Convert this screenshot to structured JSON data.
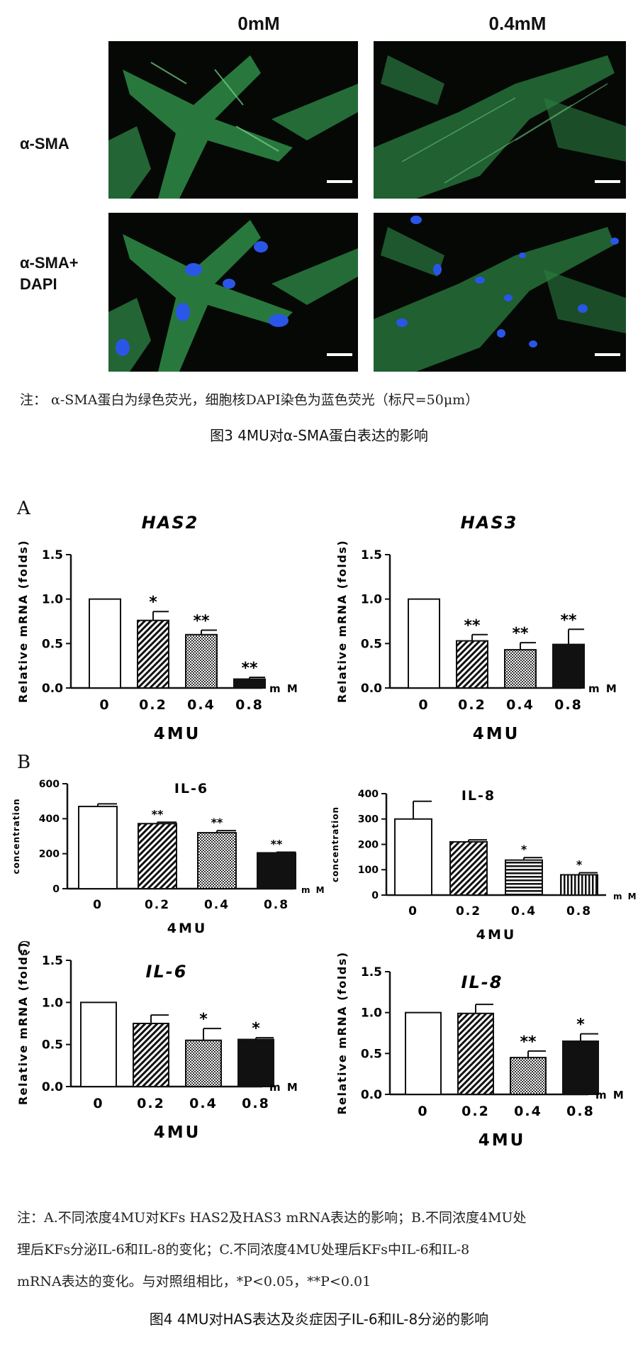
{
  "fig3": {
    "col_labels": [
      "0mM",
      "0.4mM"
    ],
    "row_labels": [
      "α-SMA",
      "α-SMA+\nDAPI"
    ],
    "note": "注：  α-SMA蛋白为绿色荧光，细胞核DAPI染色为蓝色荧光（标尺=50μm）",
    "caption": "图3   4MU对α-SMA蛋白表达的影响",
    "colors": {
      "green": "#3fae5a",
      "blue": "#2a56e8",
      "background": "#050805"
    }
  },
  "fig4": {
    "panel_letters": [
      "A",
      "B",
      "C"
    ],
    "note_lines": [
      "注：A.不同浓度4MU对KFs  HAS2及HAS3  mRNA表达的影响；B.不同浓度4MU处",
      "理后KFs分泌IL-6和IL-8的变化；C.不同浓度4MU处理后KFs中IL-6和IL-8",
      "mRNA表达的变化。与对照组相比，*P<0.05，**P<0.01"
    ],
    "caption": "图4   4MU对HAS表达及炎症因子IL-6和IL-8分泌的影响"
  },
  "chart_data": [
    {
      "type": "bar",
      "panel": "A",
      "title": "HAS2",
      "ylabel": "Relative mRNA (folds)",
      "xlabel": "4MU",
      "unit": "m M",
      "categories": [
        "0",
        "0.2",
        "0.4",
        "0.8"
      ],
      "values": [
        1.0,
        0.76,
        0.6,
        0.1
      ],
      "errors": [
        0,
        0.1,
        0.05,
        0.02
      ],
      "significance": [
        "",
        "*",
        "**",
        "**"
      ],
      "ylim": [
        0,
        1.5
      ],
      "yticks": [
        "0.0",
        "0.5",
        "1.0",
        "1.5"
      ],
      "fills": [
        "white",
        "diag",
        "dots",
        "black"
      ]
    },
    {
      "type": "bar",
      "panel": "A",
      "title": "HAS3",
      "ylabel": "Relative mRNA (folds)",
      "xlabel": "4MU",
      "unit": "m M",
      "categories": [
        "0",
        "0.2",
        "0.4",
        "0.8"
      ],
      "values": [
        1.0,
        0.53,
        0.43,
        0.49
      ],
      "errors": [
        0,
        0.07,
        0.08,
        0.17
      ],
      "significance": [
        "",
        "**",
        "**",
        "**"
      ],
      "ylim": [
        0,
        1.5
      ],
      "yticks": [
        "0.0",
        "0.5",
        "1.0",
        "1.5"
      ],
      "fills": [
        "white",
        "diag",
        "dots",
        "black"
      ]
    },
    {
      "type": "bar",
      "panel": "B",
      "title": "IL-6",
      "ylabel": "concentration",
      "xlabel": "4MU",
      "unit": "m M",
      "categories": [
        "0",
        "0.2",
        "0.4",
        "0.8"
      ],
      "values": [
        470,
        372,
        320,
        205
      ],
      "errors": [
        15,
        8,
        12,
        4
      ],
      "significance": [
        "",
        "**",
        "**",
        "**"
      ],
      "ylim": [
        0,
        600
      ],
      "yticks": [
        "0",
        "200",
        "400",
        "600"
      ],
      "fills": [
        "white",
        "diag",
        "dots",
        "black"
      ]
    },
    {
      "type": "bar",
      "panel": "B",
      "title": "IL-8",
      "ylabel": "concentration",
      "xlabel": "4MU",
      "unit": "m M",
      "categories": [
        "0",
        "0.2",
        "0.4",
        "0.8"
      ],
      "values": [
        300,
        210,
        138,
        80
      ],
      "errors": [
        70,
        8,
        10,
        8
      ],
      "significance": [
        "",
        "",
        "*",
        "*"
      ],
      "ylim": [
        0,
        400
      ],
      "yticks": [
        "0",
        "100",
        "200",
        "300",
        "400"
      ],
      "fills": [
        "white",
        "diag",
        "hlines",
        "vlines"
      ]
    },
    {
      "type": "bar",
      "panel": "C",
      "title": "IL-6",
      "ylabel": "Relative mRNA (folds)",
      "xlabel": "4MU",
      "unit": "m M",
      "categories": [
        "0",
        "0.2",
        "0.4",
        "0.8"
      ],
      "values": [
        1.0,
        0.75,
        0.55,
        0.56
      ],
      "errors": [
        0,
        0.1,
        0.14,
        0.02
      ],
      "significance": [
        "",
        "",
        "*",
        "*"
      ],
      "ylim": [
        0,
        1.5
      ],
      "yticks": [
        "0.0",
        "0.5",
        "1.0",
        "1.5"
      ],
      "fills": [
        "white",
        "diag",
        "dots",
        "black"
      ]
    },
    {
      "type": "bar",
      "panel": "C",
      "title": "IL-8",
      "ylabel": "Relative mRNA (folds)",
      "xlabel": "4MU",
      "unit": "m M",
      "categories": [
        "0",
        "0.2",
        "0.4",
        "0.8"
      ],
      "values": [
        1.0,
        0.99,
        0.45,
        0.65
      ],
      "errors": [
        0,
        0.11,
        0.08,
        0.09
      ],
      "significance": [
        "",
        "",
        "**",
        "*"
      ],
      "ylim": [
        0,
        1.5
      ],
      "yticks": [
        "0.0",
        "0.5",
        "1.0",
        "1.5"
      ],
      "fills": [
        "white",
        "diag",
        "dots",
        "black"
      ]
    }
  ]
}
